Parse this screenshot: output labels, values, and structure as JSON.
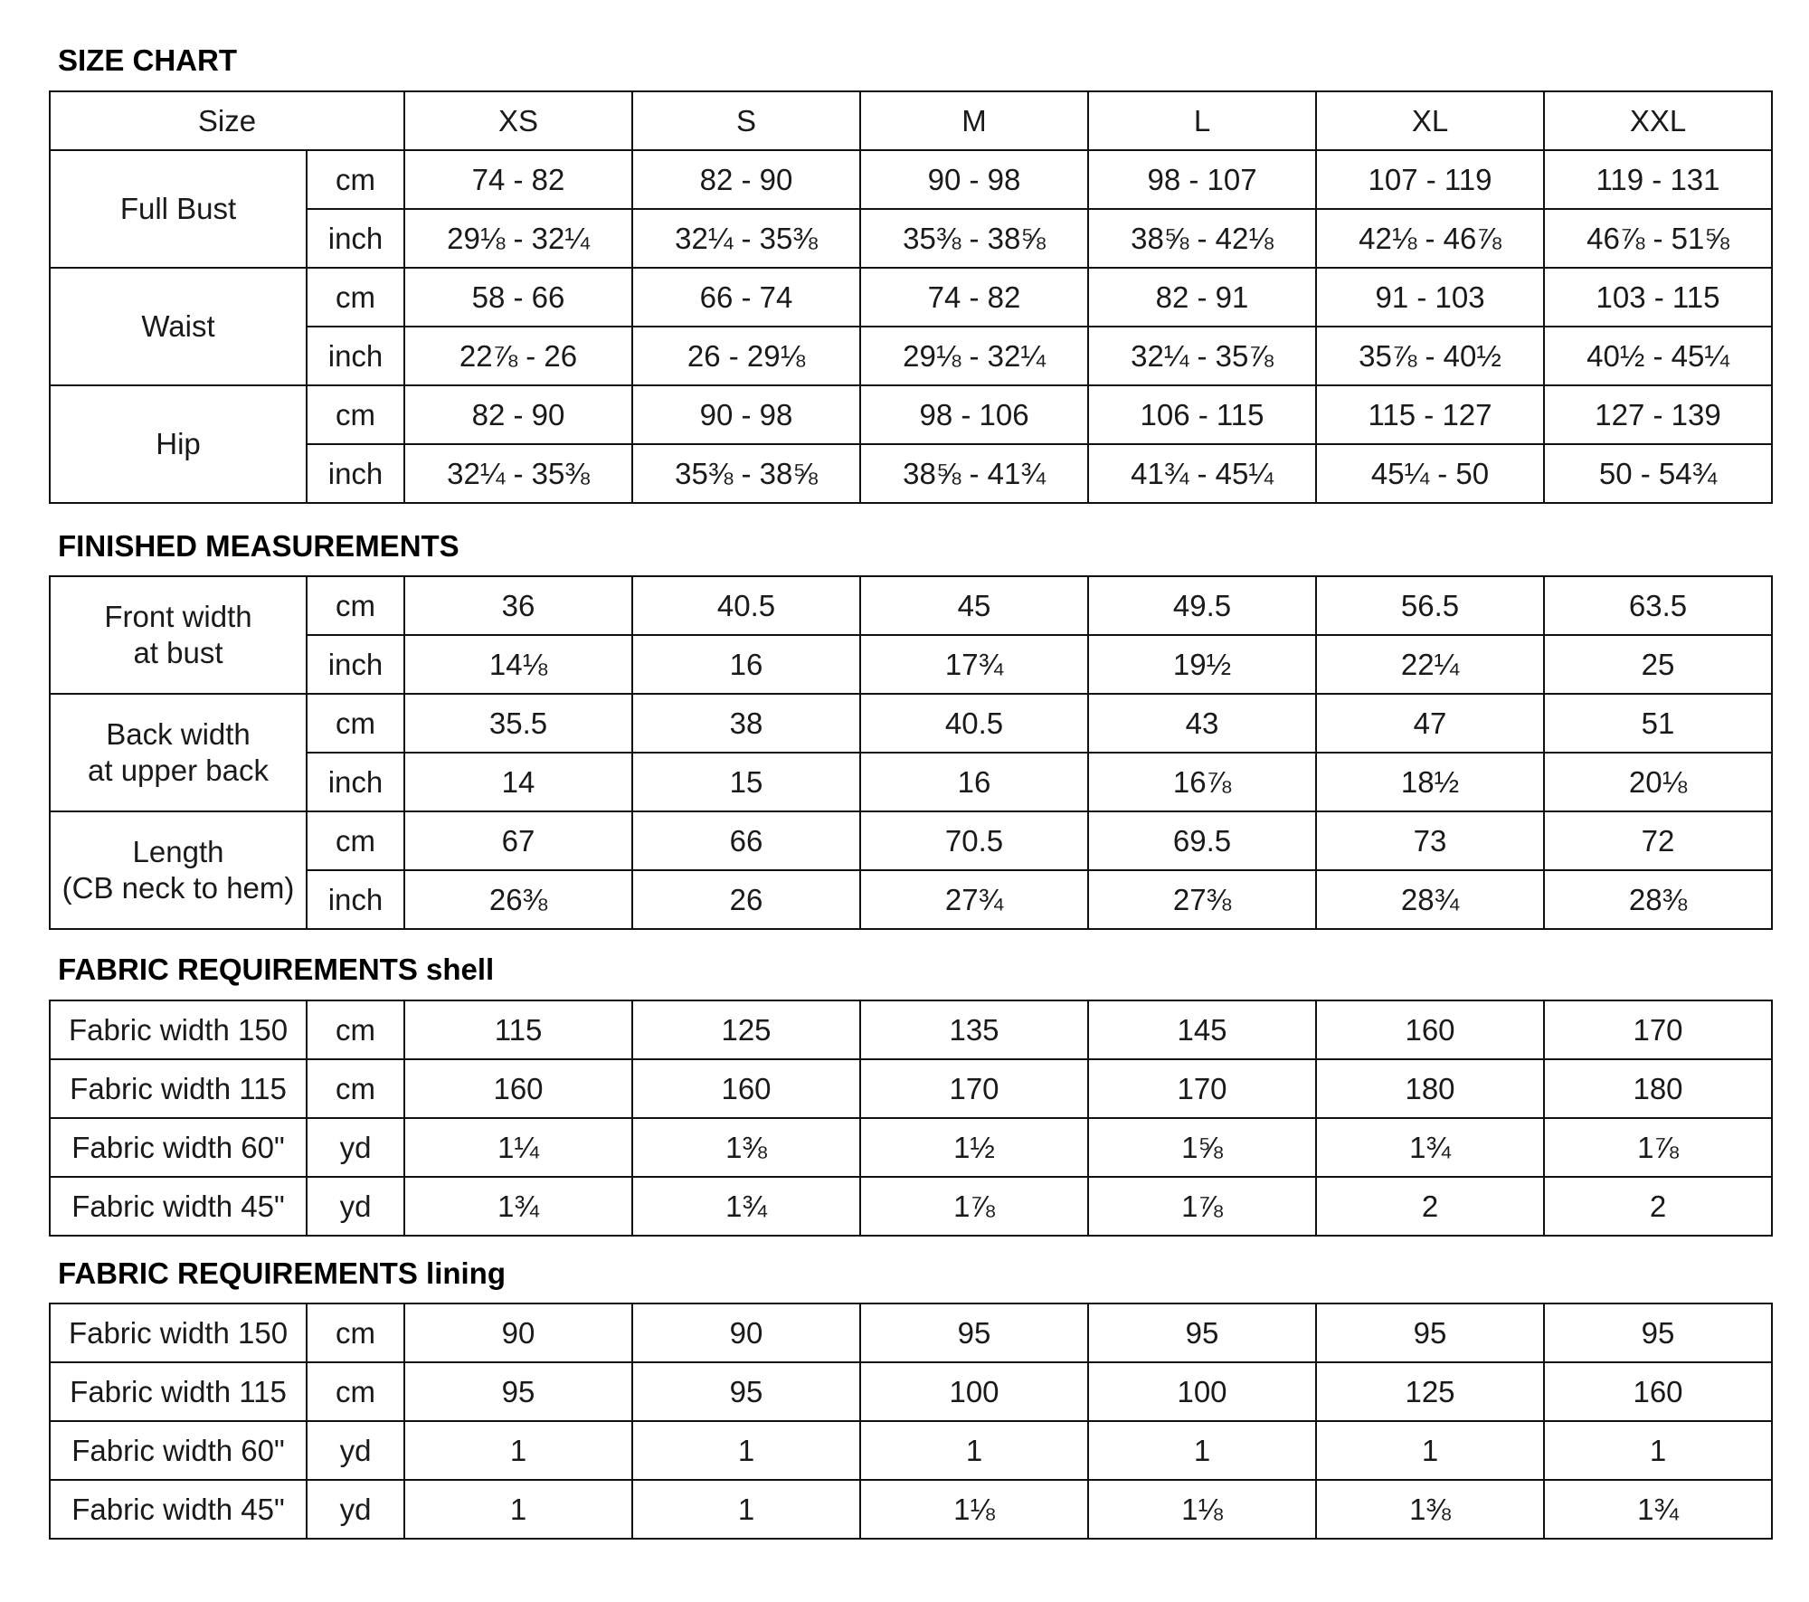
{
  "sizes_header": "Size",
  "sizes": [
    "XS",
    "S",
    "M",
    "L",
    "XL",
    "XXL"
  ],
  "sections": [
    {
      "title": "SIZE CHART",
      "has_header": true,
      "groups": [
        {
          "label": "Full Bust",
          "rows": [
            {
              "unit": "cm",
              "values": [
                "74 - 82",
                "82 - 90",
                "90 - 98",
                "98 - 107",
                "107 - 119",
                "119 - 131"
              ]
            },
            {
              "unit": "inch",
              "values": [
                "29⅛ - 32¼",
                "32¼ - 35⅜",
                "35⅜ - 38⅝",
                "38⅝ - 42⅛",
                "42⅛ - 46⅞",
                "46⅞ - 51⅝"
              ]
            }
          ]
        },
        {
          "label": "Waist",
          "rows": [
            {
              "unit": "cm",
              "values": [
                "58 - 66",
                "66 - 74",
                "74 - 82",
                "82 - 91",
                "91 - 103",
                "103 - 115"
              ]
            },
            {
              "unit": "inch",
              "values": [
                "22⅞ - 26",
                "26 - 29⅛",
                "29⅛ - 32¼",
                "32¼ - 35⅞",
                "35⅞ - 40½",
                "40½ - 45¼"
              ]
            }
          ]
        },
        {
          "label": "Hip",
          "rows": [
            {
              "unit": "cm",
              "values": [
                "82 - 90",
                "90 - 98",
                "98 - 106",
                "106 - 115",
                "115 - 127",
                "127 - 139"
              ]
            },
            {
              "unit": "inch",
              "values": [
                "32¼ - 35⅜",
                "35⅜ - 38⅝",
                "38⅝ - 41¾",
                "41¾ - 45¼",
                "45¼ - 50",
                "50 - 54¾"
              ]
            }
          ]
        }
      ]
    },
    {
      "title": "FINISHED MEASUREMENTS",
      "has_header": false,
      "groups": [
        {
          "label": "Front width\nat bust",
          "rows": [
            {
              "unit": "cm",
              "values": [
                "36",
                "40.5",
                "45",
                "49.5",
                "56.5",
                "63.5"
              ]
            },
            {
              "unit": "inch",
              "values": [
                "14⅛",
                "16",
                "17¾",
                "19½",
                "22¼",
                "25"
              ]
            }
          ]
        },
        {
          "label": "Back width\nat upper back",
          "rows": [
            {
              "unit": "cm",
              "values": [
                "35.5",
                "38",
                "40.5",
                "43",
                "47",
                "51"
              ]
            },
            {
              "unit": "inch",
              "values": [
                "14",
                "15",
                "16",
                "16⅞",
                "18½",
                "20⅛"
              ]
            }
          ]
        },
        {
          "label": "Length\n(CB neck to hem)",
          "rows": [
            {
              "unit": "cm",
              "values": [
                "67",
                "66",
                "70.5",
                "69.5",
                "73",
                "72"
              ]
            },
            {
              "unit": "inch",
              "values": [
                "26⅜",
                "26",
                "27¾",
                "27⅜",
                "28¾",
                "28⅜"
              ]
            }
          ]
        }
      ]
    },
    {
      "title": "FABRIC REQUIREMENTS shell",
      "has_header": false,
      "groups": [
        {
          "label": "Fabric width 150",
          "rows": [
            {
              "unit": "cm",
              "values": [
                "115",
                "125",
                "135",
                "145",
                "160",
                "170"
              ]
            }
          ]
        },
        {
          "label": "Fabric width 115",
          "rows": [
            {
              "unit": "cm",
              "values": [
                "160",
                "160",
                "170",
                "170",
                "180",
                "180"
              ]
            }
          ]
        },
        {
          "label": "Fabric width 60\"",
          "rows": [
            {
              "unit": "yd",
              "values": [
                "1¼",
                "1⅜",
                "1½",
                "1⅝",
                "1¾",
                "1⅞"
              ]
            }
          ]
        },
        {
          "label": "Fabric width 45\"",
          "rows": [
            {
              "unit": "yd",
              "values": [
                "1¾",
                "1¾",
                "1⅞",
                "1⅞",
                "2",
                "2"
              ]
            }
          ]
        }
      ]
    },
    {
      "title": "FABRIC REQUIREMENTS lining",
      "has_header": false,
      "groups": [
        {
          "label": "Fabric width 150",
          "rows": [
            {
              "unit": "cm",
              "values": [
                "90",
                "90",
                "95",
                "95",
                "95",
                "95"
              ]
            }
          ]
        },
        {
          "label": "Fabric width 115",
          "rows": [
            {
              "unit": "cm",
              "values": [
                "95",
                "95",
                "100",
                "100",
                "125",
                "160"
              ]
            }
          ]
        },
        {
          "label": "Fabric width 60\"",
          "rows": [
            {
              "unit": "yd",
              "values": [
                "1",
                "1",
                "1",
                "1",
                "1",
                "1"
              ]
            }
          ]
        },
        {
          "label": "Fabric width 45\"",
          "rows": [
            {
              "unit": "yd",
              "values": [
                "1",
                "1",
                "1⅛",
                "1⅛",
                "1⅜",
                "1¾"
              ]
            }
          ]
        }
      ]
    }
  ]
}
